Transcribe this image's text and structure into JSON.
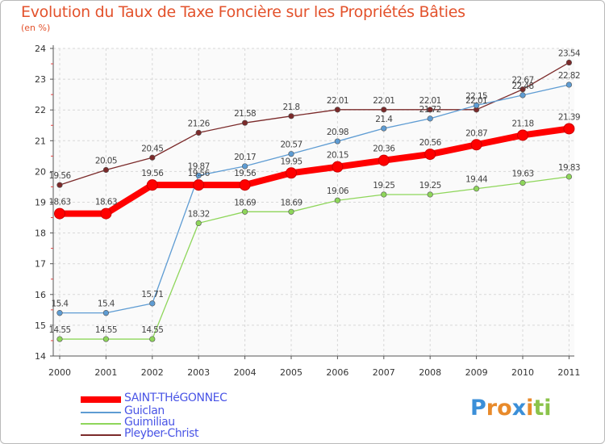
{
  "chart_data": {
    "type": "line",
    "title": "Evolution du Taux de Taxe Foncière sur les Propriétés Bâties",
    "unit_label": "(en %)",
    "xlabel": "",
    "ylabel": "",
    "x": [
      "2000",
      "2001",
      "2002",
      "2003",
      "2004",
      "2005",
      "2006",
      "2007",
      "2008",
      "2009",
      "2010",
      "2011"
    ],
    "ylim": [
      14,
      24
    ],
    "yticks": [
      "14",
      "15",
      "16",
      "17",
      "18",
      "19",
      "20",
      "21",
      "22",
      "23",
      "24"
    ],
    "grid": true,
    "series": [
      {
        "name": "SAINT-THéGONNEC",
        "color": "#ff0000",
        "values": [
          18.63,
          18.63,
          19.56,
          19.56,
          19.56,
          19.95,
          20.15,
          20.36,
          20.56,
          20.87,
          21.18,
          21.39
        ],
        "labels": [
          "18.63",
          "18.63",
          "19.56",
          "19.56",
          "19.56",
          "19.95",
          "20.15",
          "20.36",
          "20.56",
          "20.87",
          "21.18",
          "21.39"
        ]
      },
      {
        "name": "Guiclan",
        "color": "#5e9cd3",
        "values": [
          15.4,
          15.4,
          15.71,
          19.87,
          20.17,
          20.57,
          20.98,
          21.4,
          21.72,
          22.15,
          22.48,
          22.82
        ],
        "labels": [
          "15.4",
          "15.4",
          "15.71",
          "19.87",
          "20.17",
          "20.57",
          "20.98",
          "21.4",
          "21.72",
          "22.15",
          "22.48",
          "22.82"
        ]
      },
      {
        "name": "Guimiliau",
        "color": "#8ed65a",
        "values": [
          14.55,
          14.55,
          14.55,
          18.32,
          18.69,
          18.69,
          19.06,
          19.25,
          19.25,
          19.44,
          19.63,
          19.83
        ],
        "labels": [
          "14.55",
          "14.55",
          "14.55",
          "18.32",
          "18.69",
          "18.69",
          "19.06",
          "19.25",
          "19.25",
          "19.44",
          "19.63",
          "19.83"
        ]
      },
      {
        "name": "Pleyber-Christ",
        "color": "#7b2a2a",
        "values": [
          19.56,
          20.05,
          20.45,
          21.26,
          21.58,
          21.8,
          22.01,
          22.01,
          22.01,
          22.01,
          22.67,
          23.54
        ],
        "labels": [
          "19.56",
          "20.05",
          "20.45",
          "21.26",
          "21.58",
          "21.8",
          "22.01",
          "22.01",
          "22.01",
          "22.01",
          "22.67",
          "23.54"
        ]
      }
    ]
  },
  "legend": [
    {
      "label": "SAINT-THéGONNEC"
    },
    {
      "label": "Guiclan"
    },
    {
      "label": "Guimiliau"
    },
    {
      "label": "Pleyber-Christ"
    }
  ],
  "logo": {
    "letters": [
      "P",
      "r",
      "o",
      "x",
      "i",
      "t",
      "i"
    ],
    "colors": [
      "#3b8fd8",
      "#e88a2b",
      "#e88a2b",
      "#3b8fd8",
      "#e88a2b",
      "#8bc34a",
      "#8bc34a"
    ]
  }
}
